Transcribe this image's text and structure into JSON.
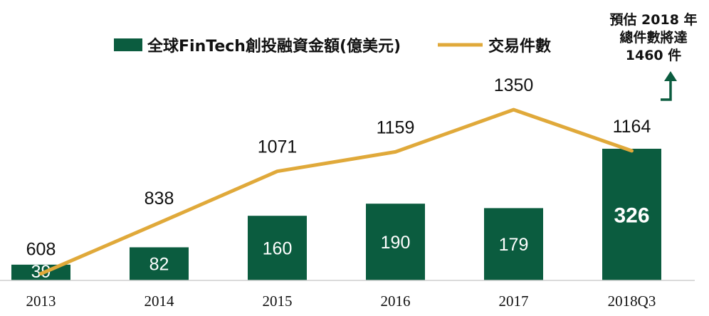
{
  "chart_data": {
    "type": "bar",
    "categories": [
      "2013",
      "2014",
      "2015",
      "2016",
      "2017",
      "2018Q3"
    ],
    "series": [
      {
        "name": "全球FinTech創投融資金額(億美元)",
        "type": "bar",
        "values": [
          39,
          82,
          160,
          190,
          179,
          326
        ],
        "color": "#0b5c3f"
      },
      {
        "name": "交易件數",
        "type": "line",
        "values": [
          608,
          838,
          1071,
          1159,
          1350,
          1164
        ],
        "color": "#e0a93a"
      }
    ],
    "note": {
      "lines": [
        "預估 2018 年",
        "總件數將達",
        "1460 件"
      ],
      "arrow_color": "#0b5c3f"
    },
    "legend_position": "top",
    "grid": false
  }
}
